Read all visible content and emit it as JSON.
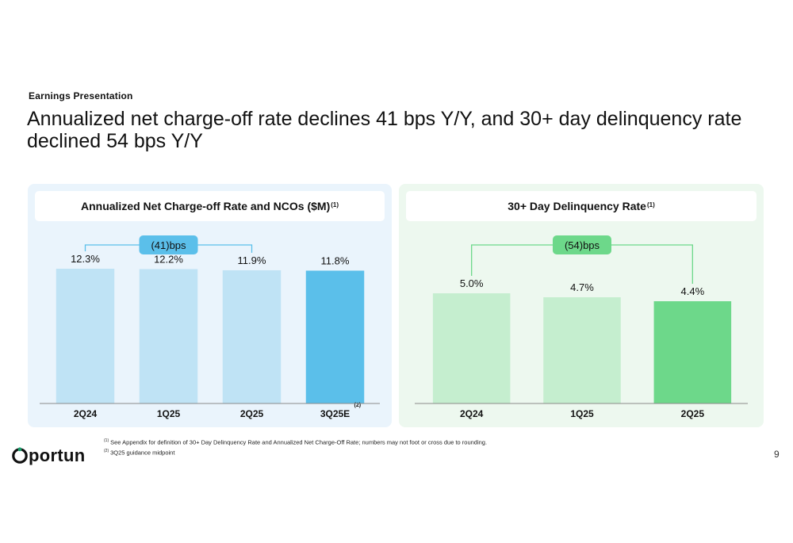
{
  "header": {
    "eyebrow": "Earnings Presentation",
    "title": "Annualized net charge-off rate declines 41 bps Y/Y, and 30+ day delinquency rate declined 54 bps Y/Y"
  },
  "left_panel": {
    "title": "Annualized Net Charge-off Rate and NCOs ($M)",
    "title_sup": "(1)"
  },
  "right_panel": {
    "title": "30+ Day Delinquency Rate",
    "title_sup": "(1)"
  },
  "chart_data": [
    {
      "type": "bar",
      "title": "Annualized Net Charge-off Rate and NCOs ($M)",
      "categories": [
        "2Q24",
        "1Q25",
        "2Q25",
        "3Q25E"
      ],
      "values": [
        12.3,
        12.2,
        11.9,
        11.8
      ],
      "data_labels": [
        "12.3%",
        "12.2%",
        "11.9%",
        "11.8%"
      ],
      "category_notes": [
        "",
        "",
        "",
        "(2)"
      ],
      "highlight_index": 3,
      "ylim": [
        0,
        12.3
      ],
      "colors": {
        "bar": "#bfe3f5",
        "highlight": "#5bbfea",
        "callout": "#5bbfea",
        "bracket": "#5bbfea"
      },
      "callout": {
        "label": "(41)bps",
        "from_index": 0,
        "to_index": 2
      }
    },
    {
      "type": "bar",
      "title": "30+ Day Delinquency Rate",
      "categories": [
        "2Q24",
        "1Q25",
        "2Q25"
      ],
      "values": [
        5.0,
        4.7,
        4.4
      ],
      "data_labels": [
        "5.0%",
        "4.7%",
        "4.4%"
      ],
      "category_notes": [
        "",
        "",
        ""
      ],
      "highlight_index": 2,
      "ylim": [
        0,
        5.0
      ],
      "colors": {
        "bar": "#c5eecf",
        "highlight": "#6dd88a",
        "callout": "#6dd88a",
        "bracket": "#6dd88a"
      },
      "callout": {
        "label": "(54)bps",
        "from_index": 0,
        "to_index": 2
      }
    }
  ],
  "footnotes": {
    "note1_mark": "(1)",
    "note1": "See Appendix for definition of 30+ Day Delinquency Rate and Annualized Net Charge-Off Rate; numbers may not foot or cross due to rounding.",
    "note2_mark": "(2)",
    "note2": "3Q25 guidance midpoint"
  },
  "brand": {
    "logo_text": "portun",
    "logo_color": "#111111",
    "logo_accent": "#1aa06d"
  },
  "page_number": "9"
}
